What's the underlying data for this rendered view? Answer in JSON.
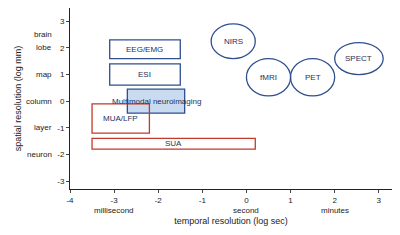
{
  "chart_data": {
    "type": "region",
    "x_label": "temporal resolution (log sec)",
    "y_label": "spatial resolution (log mm)",
    "xlim": [
      -4,
      3.3
    ],
    "ylim": [
      -3.3,
      3.5
    ],
    "xticks": [
      -4,
      -3,
      -2,
      -1,
      0,
      1,
      2,
      3
    ],
    "yticks": [
      -3,
      -2,
      -1,
      0,
      1,
      2,
      3
    ],
    "x_scale_labels": [
      {
        "value": -3,
        "label": "millisecond"
      },
      {
        "value": 0,
        "label": "second"
      },
      {
        "value": 2,
        "label": "minutes"
      }
    ],
    "y_scale_labels": [
      {
        "value": 2.5,
        "label": "brain"
      },
      {
        "value": 2,
        "label": "lobe"
      },
      {
        "value": 1,
        "label": "map"
      },
      {
        "value": 0,
        "label": "column"
      },
      {
        "value": -1,
        "label": "layer"
      },
      {
        "value": -2,
        "label": "neuron"
      }
    ],
    "grid": false,
    "regions": [
      {
        "label": "EEG/EMG",
        "shape": "rect",
        "x": [
          -3.1,
          -1.5
        ],
        "y": [
          1.6,
          2.3
        ],
        "color": "#2f4f8f"
      },
      {
        "label": "ESI",
        "shape": "rect",
        "x": [
          -3.1,
          -1.5
        ],
        "y": [
          0.6,
          1.4
        ],
        "color": "#2f4f8f"
      },
      {
        "label": "Multimodal neuroimaging",
        "shape": "rect",
        "x": [
          -2.7,
          -1.4
        ],
        "y": [
          -0.45,
          0.45
        ],
        "color": "#2f4f8f",
        "fill": "#c9dbf0"
      },
      {
        "label": "MUA/LFP",
        "shape": "rect",
        "x": [
          -3.5,
          -2.2
        ],
        "y": [
          -1.2,
          -0.1
        ],
        "color": "#c0392b"
      },
      {
        "label": "SUA",
        "shape": "rect",
        "x": [
          -3.5,
          0.2
        ],
        "y": [
          -1.8,
          -1.4
        ],
        "color": "#c0392b"
      },
      {
        "label": "NIRS",
        "shape": "ellipse",
        "x": [
          -0.8,
          0.2
        ],
        "y": [
          1.6,
          2.9
        ],
        "color": "#2f4f8f"
      },
      {
        "label": "fMRI",
        "shape": "ellipse",
        "x": [
          0.0,
          1.0
        ],
        "y": [
          0.2,
          1.6
        ],
        "color": "#2f4f8f"
      },
      {
        "label": "PET",
        "shape": "ellipse",
        "x": [
          1.0,
          2.0
        ],
        "y": [
          0.2,
          1.6
        ],
        "color": "#2f4f8f"
      },
      {
        "label": "SPECT",
        "shape": "ellipse",
        "x": [
          2.0,
          3.1
        ],
        "y": [
          1.0,
          2.2
        ],
        "color": "#2f4f8f"
      }
    ]
  }
}
